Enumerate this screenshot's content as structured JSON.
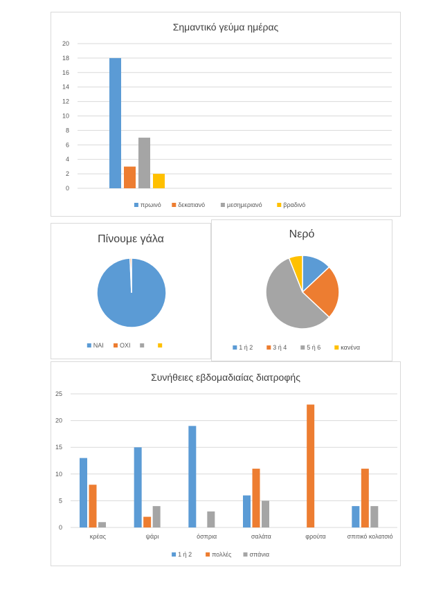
{
  "chart_data": [
    {
      "type": "bar",
      "title": "Σημαντικό γεύμα ημέρας",
      "categories": [
        ""
      ],
      "series": [
        {
          "name": "πρωινό",
          "values": [
            18
          ],
          "color": "#5b9bd5"
        },
        {
          "name": "δεκατιανό",
          "values": [
            3
          ],
          "color": "#ed7d31"
        },
        {
          "name": "μεσημεριανό",
          "values": [
            7
          ],
          "color": "#a5a5a5"
        },
        {
          "name": "βραδινό",
          "values": [
            2
          ],
          "color": "#ffc000"
        }
      ],
      "ylim": [
        0,
        20
      ],
      "yticks": [
        "0",
        "2",
        "4",
        "6",
        "8",
        "10",
        "12",
        "14",
        "16",
        "18",
        "20"
      ],
      "grid": true,
      "legend": "bottom"
    },
    {
      "type": "pie",
      "title": "Πίνουμε γάλα",
      "slices": [
        {
          "name": "ΝΑΙ",
          "value": 99.3,
          "color": "#5b9bd5"
        },
        {
          "name": "ΟΧΙ",
          "value": 0.7,
          "color": "#ed7d31"
        },
        {
          "name": "",
          "value": 0,
          "color": "#a5a5a5"
        },
        {
          "name": "",
          "value": 0,
          "color": "#ffc000"
        }
      ],
      "legend": "bottom"
    },
    {
      "type": "pie",
      "title": "Νερό",
      "slices": [
        {
          "name": "1 ή 2",
          "value": 13,
          "color": "#5b9bd5"
        },
        {
          "name": "3 ή 4",
          "value": 24,
          "color": "#ed7d31"
        },
        {
          "name": "5 ή 6",
          "value": 57,
          "color": "#a5a5a5"
        },
        {
          "name": "κανένα",
          "value": 6,
          "color": "#ffc000"
        }
      ],
      "legend": "bottom"
    },
    {
      "type": "bar",
      "title": "Συνήθειες εβδομαδιαίας διατροφής",
      "categories": [
        "κρέας",
        "ψάρι",
        "όσπρια",
        "σαλάτα",
        "φρούτα",
        "σπιτικό κολατσιό"
      ],
      "series": [
        {
          "name": "1 ή 2",
          "values": [
            13,
            15,
            19,
            6,
            0,
            4
          ],
          "color": "#5b9bd5"
        },
        {
          "name": "πολλές",
          "values": [
            8,
            2,
            0,
            11,
            23,
            11
          ],
          "color": "#ed7d31"
        },
        {
          "name": "σπάνια",
          "values": [
            1,
            4,
            3,
            5,
            0,
            4
          ],
          "color": "#a5a5a5"
        }
      ],
      "ylim": [
        0,
        25
      ],
      "yticks": [
        "0",
        "5",
        "10",
        "15",
        "20",
        "25"
      ],
      "grid": true,
      "legend": "bottom"
    }
  ]
}
